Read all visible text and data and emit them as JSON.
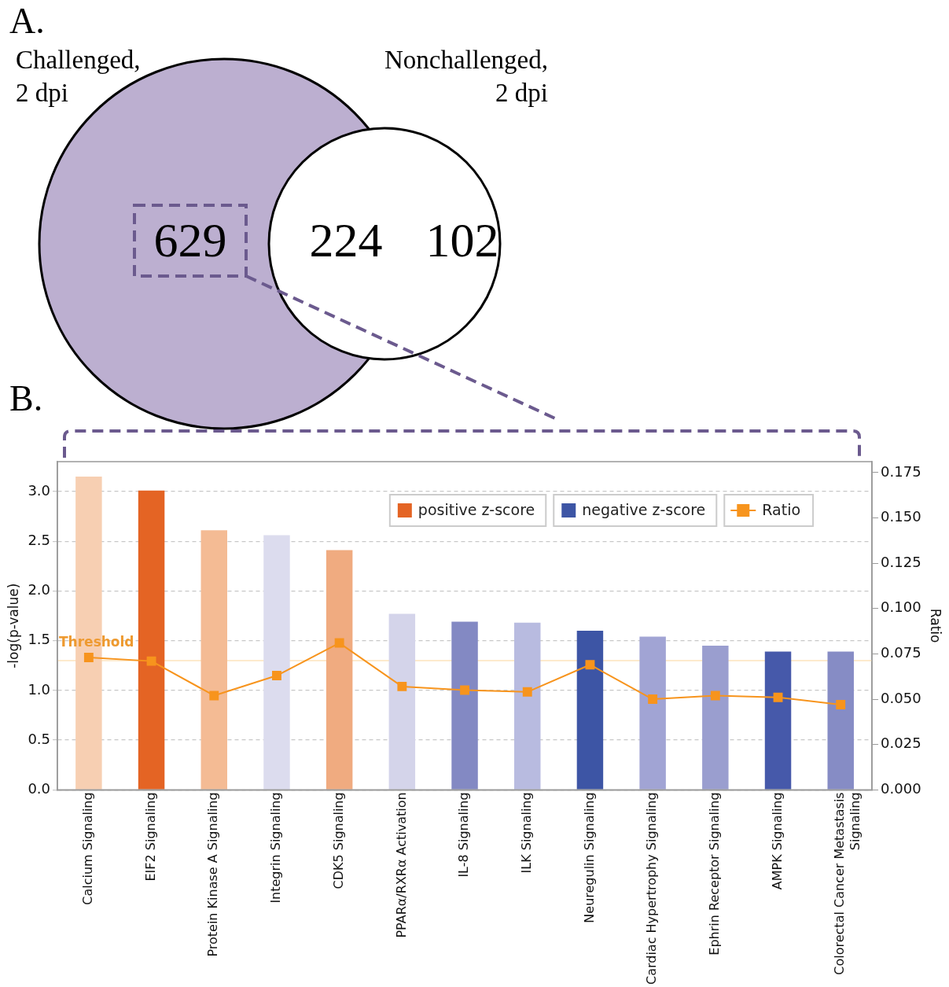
{
  "chart_data": [
    {
      "type": "other",
      "annotations": [
        "A.",
        "Challenged, 2 dpi",
        "Nonchallenged, 2 dpi"
      ],
      "categories": [
        null,
        null,
        null
      ],
      "values": [
        629,
        224,
        102
      ],
      "data_labels": true
    },
    {
      "type": "bar",
      "annotations": [
        "B."
      ],
      "ylabel": "-log(p-value)",
      "y2label": "Ratio",
      "categories": [
        "Calcium Signaling",
        "EIF2 Signaling",
        "Protein Kinase A Signaling",
        "Integrin Signaling",
        "CDK5 Signaling",
        "PPARα/RXRα Activation",
        "IL-8 Signaling",
        "ILK Signaling",
        "Neuregulin Signaling",
        "Cardiac Hypertrophy Signaling",
        "Ephrin Receptor Signaling",
        "AMPK Signaling",
        "Colorectal Cancer Metastasis Signaling"
      ],
      "series": [
        {
          "name": "positive z-score",
          "type": "bar",
          "color": "#e46424",
          "colors": [
            "#f7cfb2",
            "#e46424",
            "#f4bb94",
            null,
            "#f0ab80",
            null,
            null,
            null,
            null,
            null,
            null,
            null,
            null
          ],
          "values": [
            3.15,
            3.01,
            2.61,
            null,
            2.41,
            null,
            null,
            null,
            null,
            null,
            null,
            null,
            null
          ]
        },
        {
          "name": "negative z-score",
          "type": "bar",
          "color": "#3d55a5",
          "colors": [
            null,
            null,
            null,
            "#dcdcee",
            null,
            "#d4d4ea",
            "#8389c3",
            "#b8bbe0",
            "#3d55a5",
            "#a1a4d4",
            "#9a9ecf",
            "#4659aa",
            "#868cc5"
          ],
          "values": [
            null,
            null,
            null,
            2.56,
            null,
            1.77,
            1.69,
            1.68,
            1.6,
            1.54,
            1.45,
            1.39,
            1.39
          ]
        },
        {
          "name": "Ratio",
          "type": "line",
          "axis": "y2",
          "color": "#f7941d",
          "values": [
            0.073,
            0.071,
            0.052,
            0.063,
            0.081,
            0.057,
            0.055,
            0.054,
            0.069,
            0.05,
            0.052,
            0.051,
            0.047
          ]
        }
      ],
      "ylim": [
        0,
        3.3
      ],
      "yticks": [
        {
          "value": 0,
          "label": "0.0"
        },
        0.5,
        {
          "value": 1,
          "label": "1.0"
        },
        1.5,
        {
          "value": 2,
          "label": "2.0"
        },
        2.5,
        {
          "value": 3,
          "label": "3.0"
        }
      ],
      "y2lim": [
        0,
        0.181
      ],
      "y2ticks": [
        {
          "value": 0,
          "label": "0.000"
        },
        0.025,
        {
          "value": 0.05,
          "label": "0.050"
        },
        0.075,
        {
          "value": 0.1,
          "label": "0.100"
        },
        0.125,
        {
          "value": 0.15,
          "label": "0.150"
        },
        0.175
      ],
      "ref_lines": [
        {
          "axis": "y",
          "value": 1.3,
          "label": "Threshold",
          "color": "#fde3bd"
        }
      ],
      "grid": "y",
      "legend": "top right",
      "marker": "square"
    }
  ]
}
